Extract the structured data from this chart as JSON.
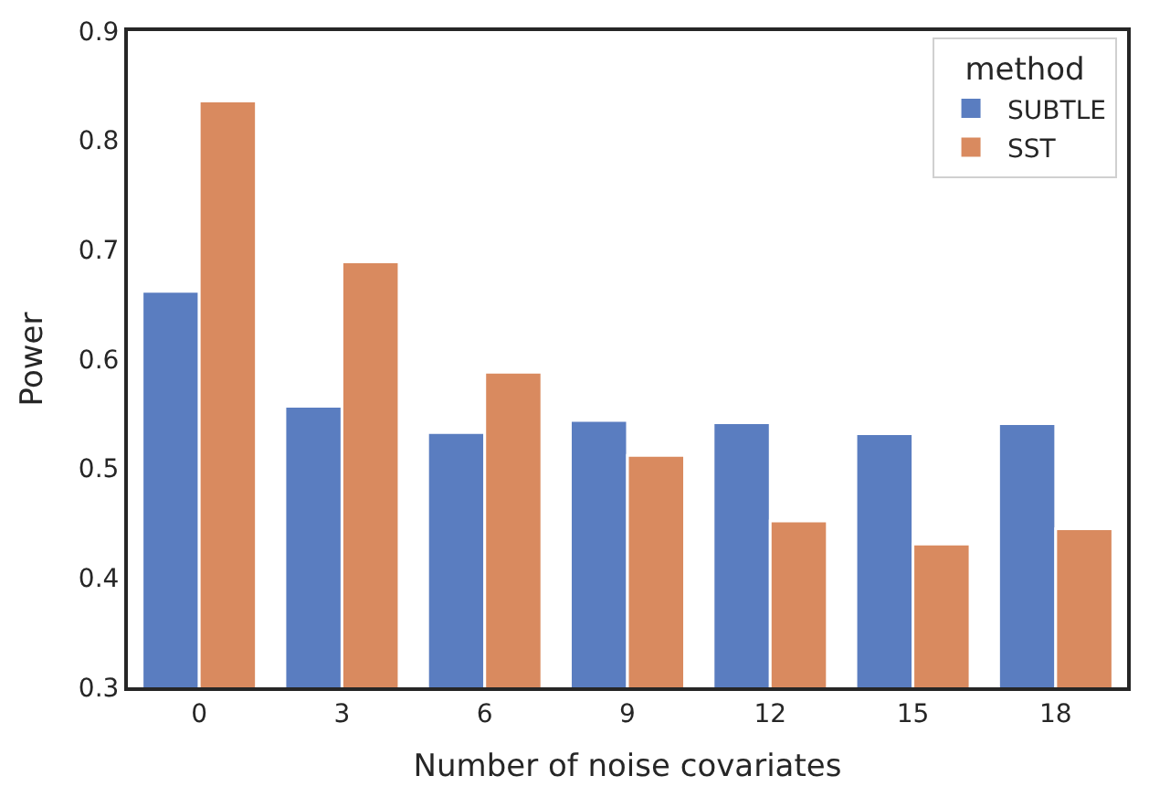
{
  "chart_data": {
    "type": "bar",
    "xlabel": "Number of noise covariates",
    "ylabel": "Power",
    "legend_title": "method",
    "categories": [
      "0",
      "3",
      "6",
      "9",
      "12",
      "15",
      "18"
    ],
    "series": [
      {
        "name": "SUBTLE",
        "color": "#5a7dc0",
        "values": [
          0.662,
          0.557,
          0.533,
          0.544,
          0.542,
          0.532,
          0.541
        ]
      },
      {
        "name": "SST",
        "color": "#d98a5f",
        "values": [
          0.836,
          0.689,
          0.588,
          0.512,
          0.452,
          0.431,
          0.445
        ]
      }
    ],
    "ylim": [
      0.3,
      0.9
    ],
    "yticks": [
      0.3,
      0.4,
      0.5,
      0.6,
      0.7,
      0.8,
      0.9
    ],
    "legend": "top right"
  }
}
